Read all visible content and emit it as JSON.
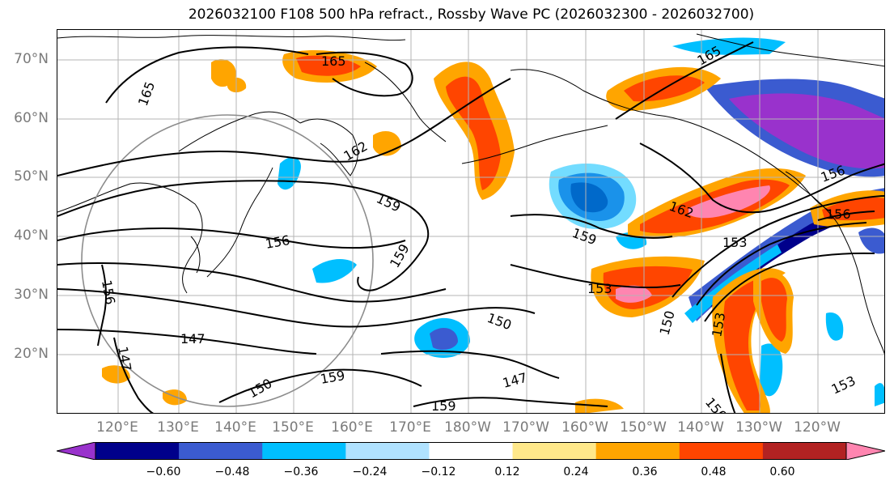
{
  "title": "2026032100 F108 500 hPa refract., Rossby Wave PC (2026032300 - 2026032700)",
  "lat_labels": [
    "70°N",
    "60°N",
    "50°N",
    "40°N",
    "30°N",
    "20°N"
  ],
  "lon_labels": [
    "120°E",
    "130°E",
    "140°E",
    "150°E",
    "160°E",
    "170°E",
    "180°W",
    "170°W",
    "160°W",
    "150°W",
    "140°W",
    "130°W",
    "120°W"
  ],
  "colorbar": {
    "ticks": [
      "−0.60",
      "−0.48",
      "−0.36",
      "−0.24",
      "−0.12",
      "0.12",
      "0.24",
      "0.36",
      "0.48",
      "0.60"
    ],
    "colors": [
      "#9932cc",
      "#00008b",
      "#3b5bd0",
      "#00bfff",
      "#b0e2ff",
      "#ffffff",
      "#ffe88a",
      "#ffa500",
      "#ff4500",
      "#b22222",
      "#ff85b0"
    ]
  },
  "contour_labels": [
    "165",
    "165",
    "165",
    "162",
    "162",
    "159",
    "159",
    "159",
    "159",
    "156",
    "156",
    "156",
    "156",
    "153",
    "153",
    "153",
    "153",
    "150",
    "150",
    "150",
    "150",
    "147",
    "147",
    "147",
    "159"
  ],
  "colors": {
    "contour": "#000000",
    "grid": "#b4b4b4",
    "circle": "#8c8c8c",
    "axis_label": "#7a7a7a"
  }
}
